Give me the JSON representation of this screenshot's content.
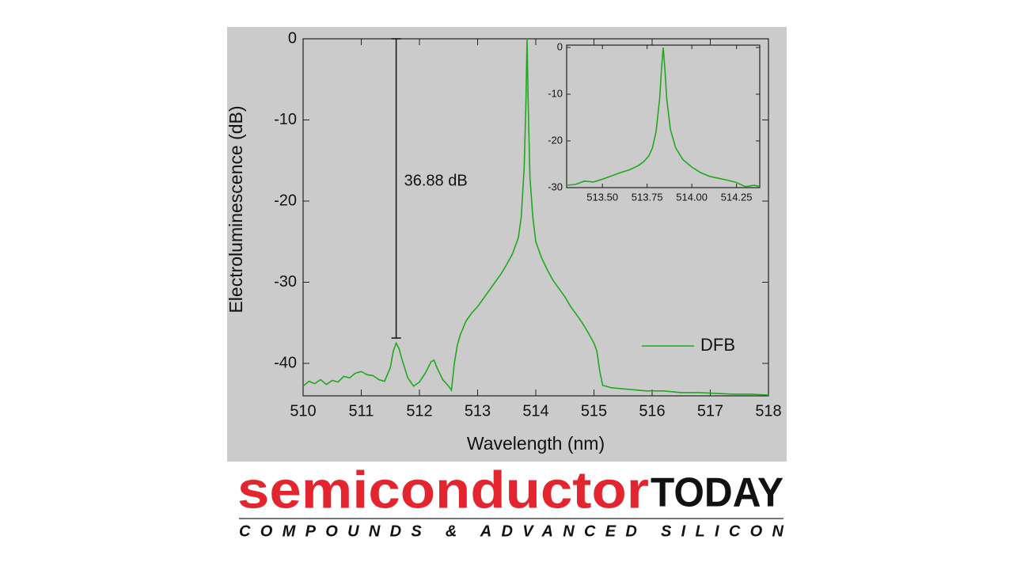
{
  "chart_data": [
    {
      "type": "line",
      "xlabel": "Wavelength (nm)",
      "ylabel": "Electroluminescence (dB)",
      "xlim": [
        510,
        518
      ],
      "ylim": [
        -44,
        0
      ],
      "xticks": [
        510,
        511,
        512,
        513,
        514,
        515,
        516,
        517,
        518
      ],
      "yticks": [
        0,
        -10,
        -20,
        -30,
        -40
      ],
      "legend": "lower right",
      "annotation": {
        "text": "36.88 dB",
        "x": 511.6,
        "from": -36.88,
        "to": 0
      },
      "series": [
        {
          "name": "DFB",
          "color": "#22a81f",
          "x": [
            510.0,
            510.1,
            510.2,
            510.3,
            510.4,
            510.5,
            510.6,
            510.7,
            510.8,
            510.9,
            511.0,
            511.1,
            511.2,
            511.3,
            511.4,
            511.5,
            511.55,
            511.6,
            511.65,
            511.7,
            511.8,
            511.9,
            512.0,
            512.1,
            512.2,
            512.25,
            512.3,
            512.4,
            512.5,
            512.55,
            512.6,
            512.65,
            512.7,
            512.8,
            512.9,
            513.0,
            513.1,
            513.2,
            513.3,
            513.4,
            513.5,
            513.6,
            513.7,
            513.75,
            513.8,
            513.83,
            513.85,
            513.87,
            513.9,
            513.95,
            514.0,
            514.1,
            514.2,
            514.3,
            514.4,
            514.5,
            514.6,
            514.7,
            514.8,
            514.9,
            515.0,
            515.05,
            515.1,
            515.15,
            515.3,
            515.6,
            515.9,
            516.2,
            516.5,
            516.8,
            517.1,
            517.4,
            517.7,
            518.0
          ],
          "values": [
            -42.8,
            -42.2,
            -42.5,
            -42.0,
            -42.6,
            -42.1,
            -42.3,
            -41.6,
            -41.8,
            -41.2,
            -41.0,
            -41.4,
            -41.5,
            -42.0,
            -42.2,
            -40.5,
            -38.5,
            -37.5,
            -38.2,
            -39.5,
            -41.8,
            -42.8,
            -42.3,
            -41.2,
            -39.8,
            -39.6,
            -40.5,
            -42.0,
            -42.8,
            -43.3,
            -40.0,
            -37.8,
            -36.5,
            -34.8,
            -33.8,
            -33.0,
            -32.0,
            -31.0,
            -30.0,
            -29.0,
            -27.8,
            -26.5,
            -24.5,
            -22.0,
            -16.0,
            -8.0,
            0,
            -8.0,
            -17.0,
            -22.0,
            -25.0,
            -27.0,
            -28.5,
            -29.8,
            -30.8,
            -31.8,
            -33.0,
            -34.0,
            -35.0,
            -36.2,
            -37.5,
            -38.5,
            -41.0,
            -42.7,
            -43.0,
            -43.2,
            -43.4,
            -43.4,
            -43.6,
            -43.6,
            -43.7,
            -43.8,
            -43.8,
            -43.9
          ]
        }
      ]
    },
    {
      "type": "line",
      "xlim": [
        513.3,
        514.38
      ],
      "ylim": [
        -30,
        0.5
      ],
      "xticks": [
        {
          "value": 513.5,
          "label": "513.50"
        },
        {
          "value": 513.75,
          "label": "513.75"
        },
        {
          "value": 514.0,
          "label": "514.00"
        },
        {
          "value": 514.25,
          "label": "514.25"
        }
      ],
      "yticks": [
        0,
        -10,
        -20,
        -30
      ],
      "series": [
        {
          "color": "#22a81f",
          "x": [
            513.3,
            513.35,
            513.4,
            513.45,
            513.5,
            513.55,
            513.6,
            513.65,
            513.7,
            513.73,
            513.76,
            513.78,
            513.8,
            513.82,
            513.83,
            513.84,
            513.85,
            513.86,
            513.88,
            513.91,
            513.95,
            514.0,
            514.05,
            514.1,
            514.15,
            514.2,
            514.25,
            514.3,
            514.35,
            514.38
          ],
          "values": [
            -29.5,
            -29.3,
            -28.6,
            -28.8,
            -28.2,
            -27.5,
            -26.8,
            -26.2,
            -25.3,
            -24.5,
            -23.2,
            -21.5,
            -18.0,
            -11.0,
            -5.0,
            0,
            -5.0,
            -11.0,
            -17.5,
            -21.5,
            -24.0,
            -25.6,
            -26.8,
            -27.6,
            -28.0,
            -28.4,
            -28.9,
            -29.8,
            -29.5,
            -29.8
          ]
        }
      ]
    }
  ],
  "logo": {
    "name": "semiconductor",
    "brand": "TODAY",
    "tagline": "COMPOUNDS & ADVANCED SILICON"
  }
}
